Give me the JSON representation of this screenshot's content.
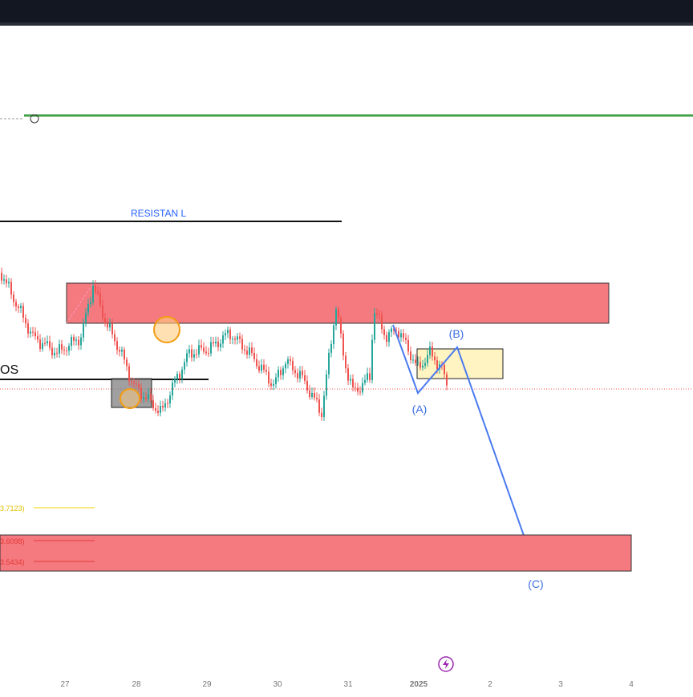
{
  "annotations": {
    "resistance": "RESISTAN L",
    "structure": "OS",
    "wave_a": "(A)",
    "wave_b": "(B)",
    "wave_c": "(C)"
  },
  "price_labels": [
    "3.7123)",
    "3.6098)",
    "3.5434)"
  ],
  "time_axis": [
    "27",
    "28",
    "29",
    "30",
    "31",
    "2025",
    "2",
    "3",
    "4"
  ]
}
